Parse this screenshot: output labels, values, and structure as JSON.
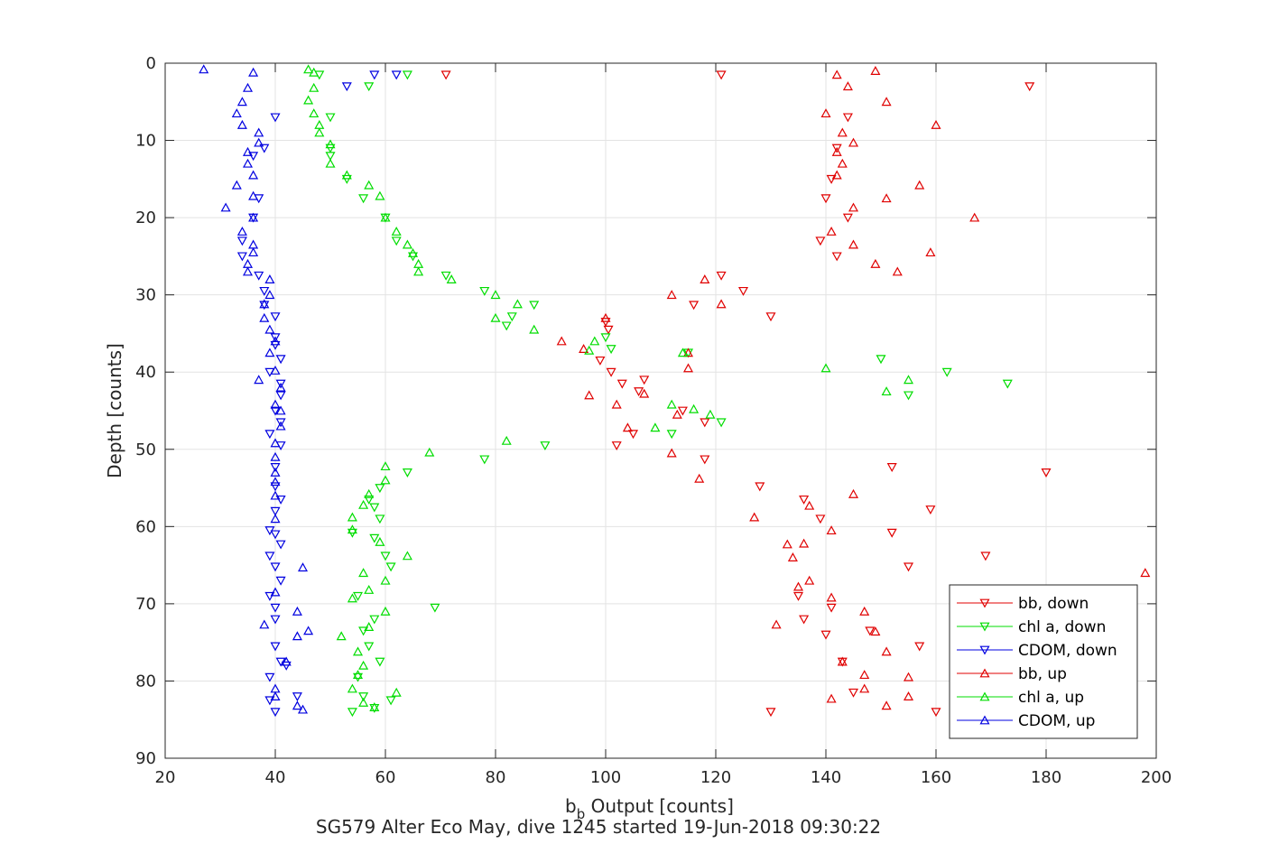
{
  "chart_data": {
    "type": "scatter",
    "xlabel_main": "b",
    "xlabel_sub": "b",
    "xlabel_rest": " Output [counts]",
    "ylabel": "Depth [counts]",
    "caption": "SG579 Alter Eco May, dive 1245 started 19-Jun-2018 09:30:22",
    "xlim": [
      20,
      200
    ],
    "ylim": [
      0,
      90
    ],
    "y_reversed": true,
    "grid": true,
    "legend_position": "bottom-right",
    "xticks": [
      "20",
      "40",
      "60",
      "80",
      "100",
      "120",
      "140",
      "160",
      "180",
      "200"
    ],
    "yticks": [
      "0",
      "10",
      "20",
      "30",
      "40",
      "50",
      "60",
      "70",
      "80",
      "90"
    ],
    "colors": {
      "bb": "#e00000",
      "chl": "#00dd00",
      "cdom": "#0000e0",
      "axis": "#262626",
      "grid": "#e3e3e3"
    },
    "series": [
      {
        "name": "bb, down",
        "color": "#e00000",
        "marker": "triangle-down",
        "points": [
          [
            71,
            1.5
          ],
          [
            121,
            1.5
          ],
          [
            177,
            3
          ],
          [
            144,
            7
          ],
          [
            142,
            11
          ],
          [
            141,
            15
          ],
          [
            140,
            17.5
          ],
          [
            144,
            20
          ],
          [
            139,
            23
          ],
          [
            142,
            25
          ],
          [
            121,
            27.5
          ],
          [
            125,
            29.5
          ],
          [
            116,
            31.3
          ],
          [
            130,
            32.8
          ],
          [
            100,
            33.5
          ],
          [
            100.5,
            34.5
          ],
          [
            99,
            38.5
          ],
          [
            101,
            40
          ],
          [
            107,
            41
          ],
          [
            103,
            41.5
          ],
          [
            106,
            42.5
          ],
          [
            114,
            45
          ],
          [
            118,
            46.5
          ],
          [
            105,
            48
          ],
          [
            102,
            49.5
          ],
          [
            118,
            51.3
          ],
          [
            128,
            54.8
          ],
          [
            136,
            56.5
          ],
          [
            139,
            59
          ],
          [
            135,
            69
          ],
          [
            136,
            72
          ],
          [
            141,
            70.5
          ],
          [
            140,
            74
          ],
          [
            143,
            77.5
          ],
          [
            148,
            73.5
          ],
          [
            157,
            75.5
          ],
          [
            145,
            81.5
          ],
          [
            160,
            84
          ],
          [
            130,
            84
          ],
          [
            152,
            60.8
          ],
          [
            152,
            52.3
          ],
          [
            159,
            57.8
          ],
          [
            169,
            63.8
          ],
          [
            155,
            65.2
          ],
          [
            180,
            53
          ]
        ]
      },
      {
        "name": "chl a, down",
        "color": "#00dd00",
        "marker": "triangle-down",
        "points": [
          [
            48,
            1.5
          ],
          [
            64,
            1.5
          ],
          [
            57,
            3
          ],
          [
            50,
            7
          ],
          [
            50,
            11
          ],
          [
            50,
            12
          ],
          [
            53,
            15
          ],
          [
            56,
            17.5
          ],
          [
            60,
            20
          ],
          [
            62,
            23
          ],
          [
            65,
            25
          ],
          [
            71,
            27.5
          ],
          [
            78,
            29.5
          ],
          [
            87,
            31.3
          ],
          [
            83,
            32.8
          ],
          [
            82,
            34
          ],
          [
            100,
            35.5
          ],
          [
            101,
            37
          ],
          [
            115,
            37.5
          ],
          [
            150,
            38.3
          ],
          [
            162,
            40
          ],
          [
            173,
            41.5
          ],
          [
            155,
            43
          ],
          [
            121,
            46.5
          ],
          [
            112,
            48
          ],
          [
            89,
            49.5
          ],
          [
            78,
            51.3
          ],
          [
            64,
            53
          ],
          [
            59,
            55
          ],
          [
            57,
            56.5
          ],
          [
            59,
            59
          ],
          [
            54,
            60.8
          ],
          [
            58,
            61.5
          ],
          [
            61,
            65.2
          ],
          [
            55,
            69
          ],
          [
            69,
            70.5
          ],
          [
            58,
            72
          ],
          [
            56,
            73.5
          ],
          [
            57,
            75.5
          ],
          [
            59,
            77.5
          ],
          [
            55,
            79.5
          ],
          [
            56,
            82
          ],
          [
            61,
            82.5
          ],
          [
            58,
            83.5
          ],
          [
            54,
            84
          ],
          [
            60,
            63.8
          ],
          [
            58,
            57.5
          ]
        ]
      },
      {
        "name": "CDOM, down",
        "color": "#0000e0",
        "marker": "triangle-down",
        "points": [
          [
            53,
            3
          ],
          [
            40,
            7
          ],
          [
            38,
            11
          ],
          [
            36,
            12
          ],
          [
            37,
            17.5
          ],
          [
            36,
            20
          ],
          [
            34,
            23
          ],
          [
            34,
            25
          ],
          [
            37,
            27.5
          ],
          [
            38,
            29.5
          ],
          [
            38,
            31.3
          ],
          [
            40,
            32.8
          ],
          [
            40,
            35.5
          ],
          [
            40,
            36.5
          ],
          [
            41,
            38.3
          ],
          [
            39,
            40
          ],
          [
            41,
            41.5
          ],
          [
            41,
            43
          ],
          [
            40,
            45
          ],
          [
            41,
            46.5
          ],
          [
            39,
            48
          ],
          [
            41,
            49.5
          ],
          [
            40,
            52.3
          ],
          [
            40,
            54.8
          ],
          [
            41,
            56.5
          ],
          [
            40,
            58
          ],
          [
            39,
            60.5
          ],
          [
            40,
            61
          ],
          [
            41,
            62.3
          ],
          [
            39,
            63.8
          ],
          [
            40,
            65.2
          ],
          [
            41,
            67
          ],
          [
            39,
            69
          ],
          [
            40,
            72
          ],
          [
            40,
            75.5
          ],
          [
            41,
            77.5
          ],
          [
            42,
            78
          ],
          [
            39,
            79.5
          ],
          [
            44,
            82
          ],
          [
            39,
            82.5
          ],
          [
            40,
            84
          ],
          [
            40,
            70.5
          ],
          [
            58,
            1.5
          ],
          [
            62,
            1.5
          ]
        ]
      },
      {
        "name": "bb, up",
        "color": "#e00000",
        "marker": "triangle-up",
        "points": [
          [
            149,
            1
          ],
          [
            142,
            1.5
          ],
          [
            144,
            3
          ],
          [
            151,
            5
          ],
          [
            140,
            6.5
          ],
          [
            160,
            8
          ],
          [
            143,
            9
          ],
          [
            145,
            10.3
          ],
          [
            142,
            11.5
          ],
          [
            143,
            13
          ],
          [
            142,
            14.5
          ],
          [
            157,
            15.8
          ],
          [
            151,
            17.5
          ],
          [
            145,
            18.7
          ],
          [
            167,
            20
          ],
          [
            141,
            21.8
          ],
          [
            145,
            23.5
          ],
          [
            159,
            24.5
          ],
          [
            149,
            26
          ],
          [
            153,
            27
          ],
          [
            118,
            28
          ],
          [
            112,
            30
          ],
          [
            121,
            31.2
          ],
          [
            100,
            33
          ],
          [
            92,
            36
          ],
          [
            96,
            37
          ],
          [
            97,
            43
          ],
          [
            102,
            44.2
          ],
          [
            107,
            42.8
          ],
          [
            113,
            45.5
          ],
          [
            104,
            47.2
          ],
          [
            115,
            37.5
          ],
          [
            115,
            39.5
          ],
          [
            112,
            50.5
          ],
          [
            117,
            53.8
          ],
          [
            145,
            55.8
          ],
          [
            137,
            57.3
          ],
          [
            127,
            58.8
          ],
          [
            141,
            60.5
          ],
          [
            136,
            62.2
          ],
          [
            134,
            64
          ],
          [
            133,
            62.3
          ],
          [
            135,
            67.8
          ],
          [
            137,
            67
          ],
          [
            141,
            69.2
          ],
          [
            147,
            71
          ],
          [
            131,
            72.7
          ],
          [
            149,
            73.6
          ],
          [
            151,
            76.2
          ],
          [
            143,
            77.5
          ],
          [
            147,
            79.2
          ],
          [
            155,
            79.5
          ],
          [
            147,
            81
          ],
          [
            141,
            82.3
          ],
          [
            155,
            82
          ],
          [
            151,
            83.2
          ],
          [
            198,
            66
          ]
        ]
      },
      {
        "name": "chl a, up",
        "color": "#00dd00",
        "marker": "triangle-up",
        "points": [
          [
            46,
            0.8
          ],
          [
            47,
            1.2
          ],
          [
            47,
            3.2
          ],
          [
            46,
            4.8
          ],
          [
            47,
            6.5
          ],
          [
            48,
            8
          ],
          [
            48,
            9
          ],
          [
            50,
            10.5
          ],
          [
            50,
            13
          ],
          [
            53,
            14.5
          ],
          [
            57,
            15.8
          ],
          [
            59,
            17.2
          ],
          [
            60,
            20
          ],
          [
            62,
            21.8
          ],
          [
            64,
            23.5
          ],
          [
            65,
            24.6
          ],
          [
            66,
            26
          ],
          [
            66,
            27
          ],
          [
            72,
            28
          ],
          [
            80,
            30
          ],
          [
            84,
            31.2
          ],
          [
            80,
            33
          ],
          [
            87,
            34.5
          ],
          [
            98,
            36
          ],
          [
            97,
            37.2
          ],
          [
            114,
            37.5
          ],
          [
            140,
            39.5
          ],
          [
            155,
            41
          ],
          [
            151,
            42.5
          ],
          [
            112,
            44.2
          ],
          [
            116,
            44.8
          ],
          [
            119,
            45.5
          ],
          [
            109,
            47.2
          ],
          [
            82,
            48.9
          ],
          [
            68,
            50.4
          ],
          [
            60,
            52.2
          ],
          [
            60,
            54
          ],
          [
            57,
            55.8
          ],
          [
            56,
            57.2
          ],
          [
            54,
            58.8
          ],
          [
            54,
            60.4
          ],
          [
            59,
            62
          ],
          [
            64,
            63.8
          ],
          [
            56,
            66
          ],
          [
            60,
            67
          ],
          [
            57,
            68.2
          ],
          [
            54,
            69.3
          ],
          [
            60,
            71
          ],
          [
            57,
            73
          ],
          [
            52,
            74.2
          ],
          [
            55,
            76.2
          ],
          [
            56,
            78
          ],
          [
            55,
            79.2
          ],
          [
            54,
            81
          ],
          [
            62,
            81.5
          ],
          [
            56,
            82.8
          ],
          [
            58,
            83.4
          ]
        ]
      },
      {
        "name": "CDOM, up",
        "color": "#0000e0",
        "marker": "triangle-up",
        "points": [
          [
            27,
            0.8
          ],
          [
            36,
            1.2
          ],
          [
            35,
            3.2
          ],
          [
            34,
            5
          ],
          [
            33,
            6.5
          ],
          [
            34,
            8
          ],
          [
            37,
            9
          ],
          [
            37,
            10.3
          ],
          [
            35,
            11.5
          ],
          [
            35,
            13
          ],
          [
            36,
            14.5
          ],
          [
            33,
            15.8
          ],
          [
            36,
            17.2
          ],
          [
            31,
            18.7
          ],
          [
            36,
            20
          ],
          [
            34,
            21.8
          ],
          [
            36,
            23.5
          ],
          [
            36,
            24.5
          ],
          [
            35,
            26
          ],
          [
            35,
            27
          ],
          [
            39,
            28
          ],
          [
            39,
            30
          ],
          [
            38,
            31.2
          ],
          [
            38,
            33
          ],
          [
            39,
            34.5
          ],
          [
            40,
            36
          ],
          [
            39,
            37.5
          ],
          [
            40,
            39.8
          ],
          [
            37,
            41
          ],
          [
            41,
            42
          ],
          [
            40,
            44.2
          ],
          [
            41,
            45
          ],
          [
            41,
            47
          ],
          [
            40,
            49.2
          ],
          [
            40,
            51
          ],
          [
            40,
            53
          ],
          [
            40,
            54.2
          ],
          [
            40,
            56
          ],
          [
            40,
            59
          ],
          [
            45,
            65.3
          ],
          [
            40,
            68.5
          ],
          [
            44,
            71
          ],
          [
            38,
            72.7
          ],
          [
            46,
            73.5
          ],
          [
            44,
            74.2
          ],
          [
            42,
            77.5
          ],
          [
            40,
            81
          ],
          [
            40,
            82
          ],
          [
            44,
            83.2
          ],
          [
            45,
            83.7
          ]
        ]
      }
    ]
  }
}
